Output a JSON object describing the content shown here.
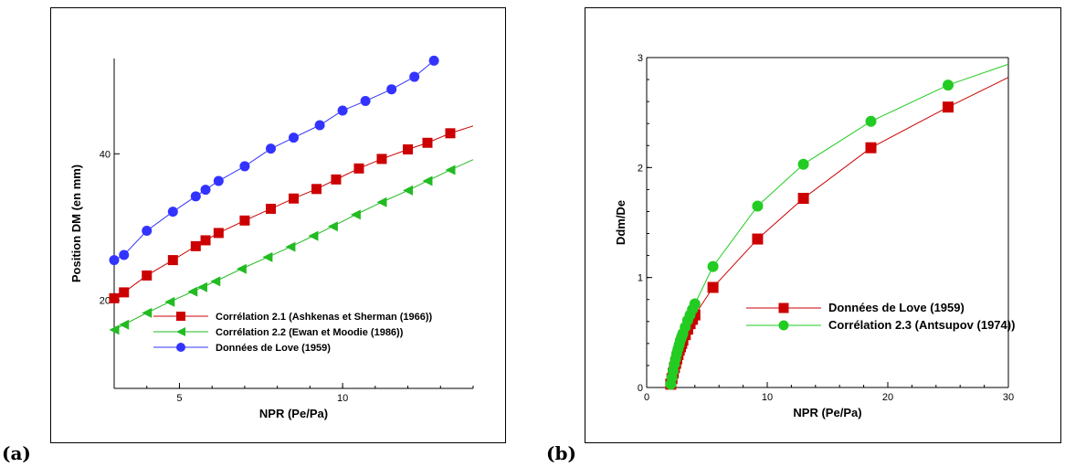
{
  "figure": {
    "panel_a_tag": "(a)",
    "panel_b_tag": "(b)"
  },
  "chart_data": [
    {
      "type": "line",
      "panel": "(a)",
      "title": "",
      "xlabel": "NPR (Pe/Pa)",
      "ylabel": "Position DM (en mm)",
      "xlim": [
        3,
        14
      ],
      "ylim": [
        8,
        53
      ],
      "xticks": [
        5,
        10
      ],
      "yticks": [
        20,
        40
      ],
      "grid": false,
      "legend_position": "bottom-right",
      "series": [
        {
          "name": "Corrélation 2.1 (Ashkenas et Sherman (1966))",
          "color": "#cc0000",
          "marker": "square",
          "x": [
            3.0,
            3.3,
            4.0,
            4.8,
            5.5,
            5.8,
            6.2,
            7.0,
            7.8,
            8.5,
            9.2,
            9.8,
            10.5,
            11.2,
            12.0,
            12.6,
            13.3
          ],
          "y": [
            20.3,
            21.1,
            23.4,
            25.5,
            27.4,
            28.2,
            29.2,
            30.9,
            32.5,
            33.9,
            35.2,
            36.5,
            38.0,
            39.3,
            40.6,
            41.5,
            42.8
          ],
          "line_to": [
            14,
            43.8
          ]
        },
        {
          "name": "Corrélation 2.2 (Ewan et Moodie (1986))",
          "color": "#22bb22",
          "marker": "triangle-left",
          "x": [
            3.0,
            3.3,
            4.0,
            4.7,
            5.4,
            5.7,
            6.1,
            6.9,
            7.7,
            8.4,
            9.1,
            9.7,
            10.4,
            11.2,
            12.0,
            12.6,
            13.3
          ],
          "y": [
            16.0,
            16.7,
            18.3,
            19.8,
            21.2,
            21.8,
            22.6,
            24.3,
            25.9,
            27.3,
            28.8,
            30.1,
            31.7,
            33.4,
            35.0,
            36.3,
            37.8
          ],
          "line_to": [
            14,
            39.2
          ]
        },
        {
          "name": "Données de Love (1959)",
          "color": "#3333ff",
          "marker": "circle",
          "x": [
            3.0,
            3.3,
            4.0,
            4.8,
            5.5,
            5.8,
            6.2,
            7.0,
            7.8,
            8.5,
            9.3,
            10.0,
            10.7,
            11.5,
            12.2,
            12.8
          ],
          "y": [
            25.5,
            26.2,
            29.5,
            32.1,
            34.2,
            35.1,
            36.3,
            38.3,
            40.7,
            42.2,
            43.9,
            45.9,
            47.2,
            48.8,
            50.5,
            52.7
          ],
          "line_to": [
            12.9,
            53.0
          ]
        }
      ]
    },
    {
      "type": "line",
      "panel": "(b)",
      "title": "",
      "xlabel": "NPR (Pe/Pa)",
      "ylabel": "Ddm/De",
      "xlim": [
        0,
        30
      ],
      "ylim": [
        0,
        3
      ],
      "xticks": [
        0,
        10,
        20,
        30
      ],
      "yticks": [
        0,
        1,
        2,
        3
      ],
      "grid": false,
      "legend_position": "center-right",
      "series": [
        {
          "name": "Données de Love (1959)",
          "color": "#cc0000",
          "marker": "square",
          "x": [
            2.0,
            2.1,
            2.2,
            2.3,
            2.4,
            2.5,
            2.6,
            2.7,
            2.8,
            2.9,
            3.0,
            3.2,
            3.4,
            3.6,
            3.8,
            4.0,
            5.5,
            9.2,
            13.0,
            18.6,
            25.0
          ],
          "y": [
            0.03,
            0.08,
            0.13,
            0.18,
            0.22,
            0.26,
            0.3,
            0.34,
            0.37,
            0.4,
            0.43,
            0.48,
            0.53,
            0.58,
            0.62,
            0.66,
            0.91,
            1.35,
            1.72,
            2.18,
            2.55
          ],
          "line_to": [
            30,
            2.82
          ]
        },
        {
          "name": "Corrélation 2.3  (Antsupov (1974))",
          "color": "#22cc22",
          "marker": "circle",
          "x": [
            2.0,
            2.1,
            2.2,
            2.3,
            2.4,
            2.5,
            2.6,
            2.7,
            2.8,
            2.9,
            3.0,
            3.2,
            3.4,
            3.6,
            3.8,
            4.0,
            5.5,
            9.2,
            13.0,
            18.6,
            25.0
          ],
          "y": [
            0.03,
            0.09,
            0.15,
            0.21,
            0.26,
            0.31,
            0.35,
            0.39,
            0.43,
            0.46,
            0.49,
            0.55,
            0.61,
            0.66,
            0.71,
            0.76,
            1.1,
            1.65,
            2.03,
            2.42,
            2.75
          ],
          "line_to": [
            30,
            2.94
          ]
        }
      ]
    }
  ]
}
